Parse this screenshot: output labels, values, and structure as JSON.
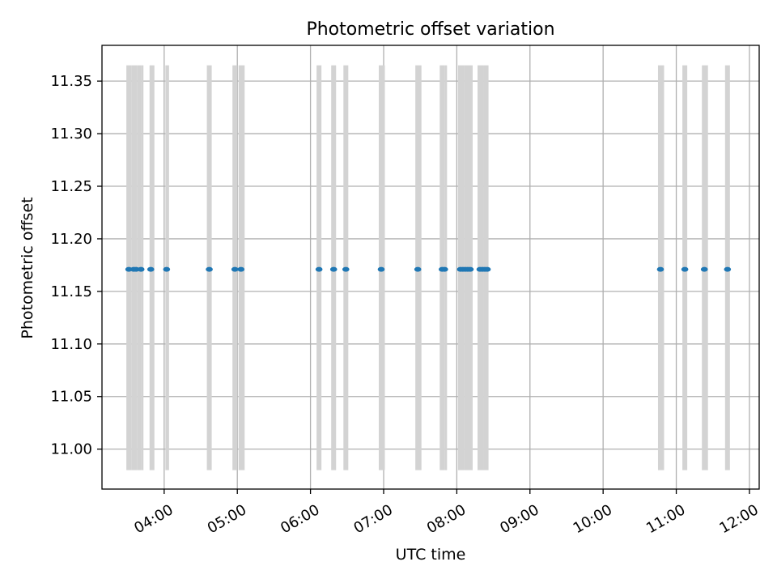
{
  "chart_data": {
    "type": "scatter",
    "title": "Photometric offset variation",
    "xlabel": "UTC time",
    "ylabel": "Photometric offset",
    "x_axis_type": "time",
    "xlim": [
      "03:09",
      "12:08"
    ],
    "ylim": [
      10.962,
      11.384
    ],
    "grid": true,
    "x_ticks": [
      "04:00",
      "05:00",
      "06:00",
      "07:00",
      "08:00",
      "09:00",
      "10:00",
      "11:00",
      "12:00"
    ],
    "y_ticks": [
      "11.00",
      "11.05",
      "11.10",
      "11.15",
      "11.20",
      "11.25",
      "11.30",
      "11.35"
    ],
    "band_range": [
      10.98,
      11.365
    ],
    "band_color": "#d3d3d3",
    "point_color": "#1f77b4",
    "point_value": 11.171,
    "points_x": [
      "03:31",
      "03:35",
      "03:37",
      "03:41",
      "03:49",
      "04:02",
      "04:37",
      "04:58",
      "05:03",
      "06:07",
      "06:19",
      "06:29",
      "06:58",
      "07:28",
      "07:48",
      "07:50",
      "08:03",
      "08:05",
      "08:07",
      "08:09",
      "08:11",
      "08:19",
      "08:21",
      "08:23",
      "08:25",
      "10:47",
      "11:07",
      "11:23",
      "11:42"
    ],
    "bands": [
      [
        "03:29",
        "03:33"
      ],
      [
        "03:33",
        "03:38"
      ],
      [
        "03:38",
        "03:41"
      ],
      [
        "03:41",
        "03:43"
      ],
      [
        "03:48",
        "03:52"
      ],
      [
        "04:01",
        "04:04"
      ],
      [
        "04:35",
        "04:39"
      ],
      [
        "04:56",
        "05:00"
      ],
      [
        "05:01",
        "05:06"
      ],
      [
        "06:05",
        "06:09"
      ],
      [
        "06:17",
        "06:21"
      ],
      [
        "06:27",
        "06:31"
      ],
      [
        "06:56",
        "07:01"
      ],
      [
        "07:26",
        "07:31"
      ],
      [
        "07:46",
        "07:50"
      ],
      [
        "07:50",
        "07:52"
      ],
      [
        "08:01",
        "08:06"
      ],
      [
        "08:06",
        "08:12"
      ],
      [
        "08:12",
        "08:13"
      ],
      [
        "08:17",
        "08:22"
      ],
      [
        "08:22",
        "08:26"
      ],
      [
        "10:45",
        "10:50"
      ],
      [
        "11:05",
        "11:09"
      ],
      [
        "11:21",
        "11:26"
      ],
      [
        "11:40",
        "11:44"
      ]
    ]
  }
}
